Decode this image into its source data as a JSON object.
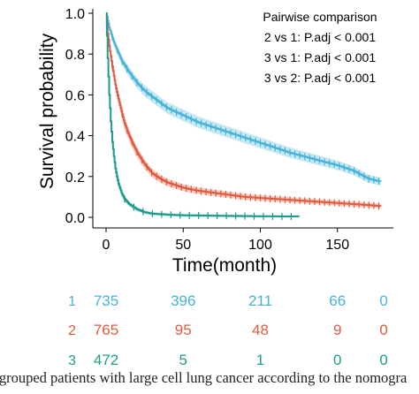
{
  "chart_data": {
    "type": "line",
    "ylabel": "Survival probability",
    "xlabel": "Time(month)",
    "xlim": [
      0,
      180
    ],
    "ylim": [
      0,
      1
    ],
    "x_ticks": [
      0,
      50,
      100,
      150
    ],
    "y_ticks": [
      0.0,
      0.2,
      0.4,
      0.6,
      0.8,
      1.0
    ],
    "y_tick_labels": [
      "0.0",
      "0.2",
      "0.4",
      "0.6",
      "0.8",
      "1.0"
    ],
    "grid": false,
    "annotation": {
      "title": "Pairwise comparison",
      "lines": [
        "2 vs 1: P.adj < 0.001",
        "3 vs 1: P.adj < 0.001",
        "3 vs 2: P.adj < 0.001"
      ]
    },
    "series": [
      {
        "color": "#46b4d8",
        "x": [
          0,
          2,
          5,
          10,
          15,
          20,
          25,
          30,
          40,
          50,
          60,
          70,
          80,
          90,
          100,
          110,
          120,
          130,
          140,
          150,
          160,
          170,
          178
        ],
        "y": [
          1.0,
          0.93,
          0.86,
          0.77,
          0.71,
          0.66,
          0.62,
          0.59,
          0.535,
          0.5,
          0.465,
          0.44,
          0.415,
          0.39,
          0.365,
          0.34,
          0.315,
          0.295,
          0.275,
          0.255,
          0.23,
          0.19,
          0.175
        ]
      },
      {
        "color": "#e05b40",
        "x": [
          0,
          1,
          2,
          4,
          6,
          8,
          10,
          12,
          15,
          18,
          20,
          25,
          30,
          35,
          40,
          50,
          60,
          70,
          80,
          90,
          100,
          120,
          150,
          170,
          178
        ],
        "y": [
          1.0,
          0.9,
          0.84,
          0.74,
          0.65,
          0.58,
          0.52,
          0.46,
          0.4,
          0.35,
          0.32,
          0.26,
          0.215,
          0.19,
          0.17,
          0.145,
          0.13,
          0.12,
          0.11,
          0.1,
          0.095,
          0.085,
          0.07,
          0.06,
          0.055
        ]
      },
      {
        "color": "#1e9b8a",
        "x": [
          0,
          1,
          2,
          3,
          4,
          5,
          6,
          7,
          8,
          10,
          12,
          15,
          20,
          25,
          30,
          40,
          50,
          70,
          100,
          125
        ],
        "y": [
          1.0,
          0.78,
          0.6,
          0.47,
          0.37,
          0.3,
          0.24,
          0.2,
          0.165,
          0.12,
          0.09,
          0.065,
          0.04,
          0.025,
          0.018,
          0.013,
          0.01,
          0.008,
          0.005,
          0.004
        ]
      }
    ]
  },
  "risk_table": {
    "rows": [
      {
        "label": "1",
        "color": "#46b4d8",
        "values": [
          "735",
          "396",
          "211",
          "66",
          "0"
        ]
      },
      {
        "label": "2",
        "color": "#e05b40",
        "values": [
          "765",
          "95",
          "48",
          "9",
          "0"
        ]
      },
      {
        "label": "3",
        "color": "#1e9b8a",
        "values": [
          "472",
          "5",
          "1",
          "0",
          "0"
        ]
      }
    ]
  },
  "caption": "e-grouped patients with large cell lung cancer according to the nomogra"
}
